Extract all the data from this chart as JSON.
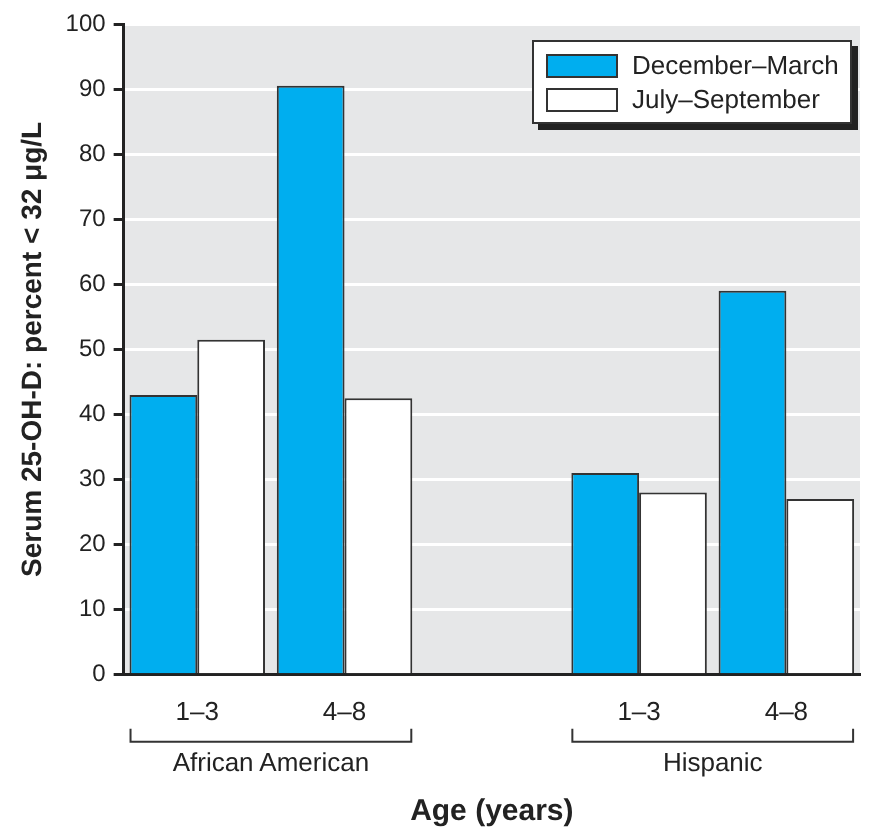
{
  "chart_data": {
    "type": "bar",
    "xlabel": "Age (years)",
    "ylabel": "Serum 25-OH-D: percent < 32 μg/L",
    "categories": [
      "1–3",
      "4–8",
      null,
      "1–3",
      "4–8"
    ],
    "series": [
      {
        "name": "December–March",
        "color": "#00aeef",
        "values": [
          43,
          90.5,
          null,
          31,
          59
        ]
      },
      {
        "name": "July–September",
        "color": "#ffffff",
        "values": [
          51.5,
          42.5,
          null,
          28,
          27
        ]
      }
    ],
    "ylim": [
      0,
      100
    ],
    "yticks": [
      0,
      10,
      20,
      30,
      40,
      50,
      60,
      70,
      80,
      90,
      100
    ],
    "grid": "y",
    "legend": "top right",
    "annotations": [
      "African American",
      "Hispanic"
    ]
  }
}
